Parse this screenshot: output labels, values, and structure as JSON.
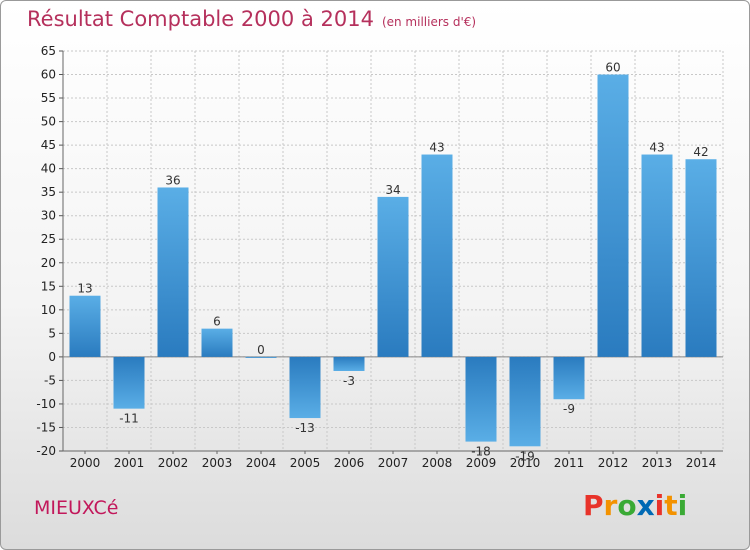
{
  "header": {
    "title": "Résultat Comptable 2000 à 2014",
    "subtitle": "(en milliers d'€)"
  },
  "footer": {
    "commune": "MIEUXCé",
    "logo_text": "Proxiti",
    "logo_colors": [
      "#e8332a",
      "#f39200",
      "#3aaa35",
      "#0069b4",
      "#e8332a",
      "#f39200",
      "#3aaa35"
    ]
  },
  "colors": {
    "bar_top": "#5aaee6",
    "bar_bottom": "#2a7bbf",
    "grid": "#c8c8c8",
    "title": "#b5305c",
    "commune": "#c2185b"
  },
  "chart_data": {
    "type": "bar",
    "title": "Résultat Comptable 2000 à 2014",
    "subtitle": "(en milliers d'€)",
    "categories": [
      "2000",
      "2001",
      "2002",
      "2003",
      "2004",
      "2005",
      "2006",
      "2007",
      "2008",
      "2009",
      "2010",
      "2011",
      "2012",
      "2013",
      "2014"
    ],
    "values": [
      13,
      -11,
      36,
      6,
      0,
      -13,
      -3,
      34,
      43,
      -18,
      -19,
      -9,
      60,
      43,
      42
    ],
    "labels": [
      "13",
      "-11",
      "36",
      "6",
      "0",
      "-13",
      "-3",
      "34",
      "43",
      "-18",
      "-19",
      "-9",
      "60",
      "43",
      "42"
    ],
    "ylim": [
      -20,
      65
    ],
    "yticks": [
      -20,
      -15,
      -10,
      -5,
      0,
      5,
      10,
      15,
      20,
      25,
      30,
      35,
      40,
      45,
      50,
      55,
      60,
      65
    ],
    "grid": true,
    "xlabel": "",
    "ylabel": ""
  }
}
